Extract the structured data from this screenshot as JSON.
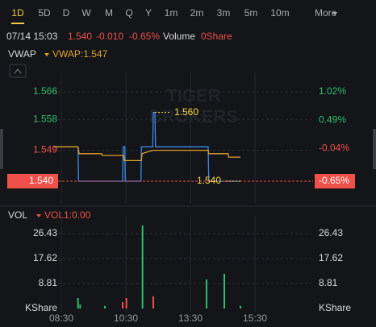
{
  "toolbar": {
    "tabs": [
      "1D",
      "5D",
      "D",
      "W",
      "M",
      "Q",
      "Y",
      "1m",
      "2m",
      "3m",
      "5m",
      "10m"
    ],
    "more": "More",
    "selected": "1D"
  },
  "header": {
    "date_time": "07/14 15:03",
    "price": "1.540",
    "change": "-0.010",
    "change_pct": "-0.65%",
    "volume_label": "Volume",
    "volume": "0Share"
  },
  "watermark": [
    "TIGER",
    "BROKERS"
  ],
  "chart_data": [
    {
      "type": "line",
      "indicator": "VWAP",
      "indicator_value": "VWAP:1.547",
      "xlim": [
        "08:15",
        "17:15"
      ],
      "xticks": [
        "08:30",
        "10:30",
        "13:30",
        "15:30"
      ],
      "ylim": [
        1.5353,
        1.5693
      ],
      "yticks": [
        1.566,
        1.558,
        1.549
      ],
      "y2lim": [
        -0.951,
        1.231
      ],
      "y2ticks": [
        {
          "value": 1.02,
          "label": "1.02%"
        },
        {
          "value": 0.49,
          "label": "0.49%"
        },
        {
          "value": -0.04,
          "label": "-0.04%"
        }
      ],
      "last_price": {
        "value": 1.54,
        "label": "1.540"
      },
      "last_change": {
        "value": -0.65,
        "label": "-0.65%"
      },
      "grid": true,
      "series": [
        {
          "name": "Price",
          "color": "#3b8beb",
          "x": [
            "09:01",
            "09:02",
            "10:24",
            "10:25",
            "10:28",
            "10:29",
            "10:58",
            "10:59",
            "11:20",
            "11:21",
            "11:24",
            "11:25",
            "14:03",
            "14:04",
            "15:03"
          ],
          "values": [
            1.55,
            1.54,
            1.54,
            1.55,
            1.55,
            1.54,
            1.54,
            1.55,
            1.55,
            1.56,
            1.56,
            1.55,
            1.55,
            1.54,
            1.54
          ]
        },
        {
          "name": "VWAP",
          "color": "#e0a030",
          "x": [
            "08:15",
            "09:01",
            "09:03",
            "09:45",
            "09:46",
            "10:26",
            "10:27",
            "10:59",
            "11:00",
            "11:20",
            "14:03",
            "14:04",
            "14:40",
            "14:41",
            "15:03"
          ],
          "values": [
            1.55,
            1.55,
            1.548,
            1.548,
            1.5475,
            1.5475,
            1.546,
            1.546,
            1.548,
            1.549,
            1.549,
            1.548,
            1.548,
            1.547,
            1.547
          ]
        }
      ],
      "annotations": [
        {
          "x": "11:24",
          "value": 1.56,
          "label": "1.560"
        },
        {
          "x": "15:03",
          "value": 1.54,
          "label": "1.540"
        }
      ]
    },
    {
      "type": "bar",
      "indicator": "VOL",
      "indicator_value": "VOL1:0.00",
      "unit": "KShare",
      "xlim": [
        "08:15",
        "17:15"
      ],
      "xticks": [
        "08:30",
        "10:30",
        "13:30",
        "15:30"
      ],
      "ylim": [
        0,
        32.67
      ],
      "yticks": [
        26.43,
        17.62,
        8.81
      ],
      "grid": true,
      "x": [
        "09:01",
        "09:05",
        "09:51",
        "10:24",
        "10:31",
        "11:01",
        "11:21",
        "14:00",
        "14:33",
        "15:03"
      ],
      "values": [
        3.7,
        1.4,
        0.9,
        2.3,
        3.7,
        29.3,
        4.3,
        10.2,
        12.2,
        0.9
      ],
      "colors": [
        "#2fbd6d",
        "#2fbd6d",
        "#2fbd6d",
        "#f0504a",
        "#f0504a",
        "#2fbd6d",
        "#f0504a",
        "#2fbd6d",
        "#2fbd6d",
        "#2fbd6d"
      ]
    }
  ]
}
